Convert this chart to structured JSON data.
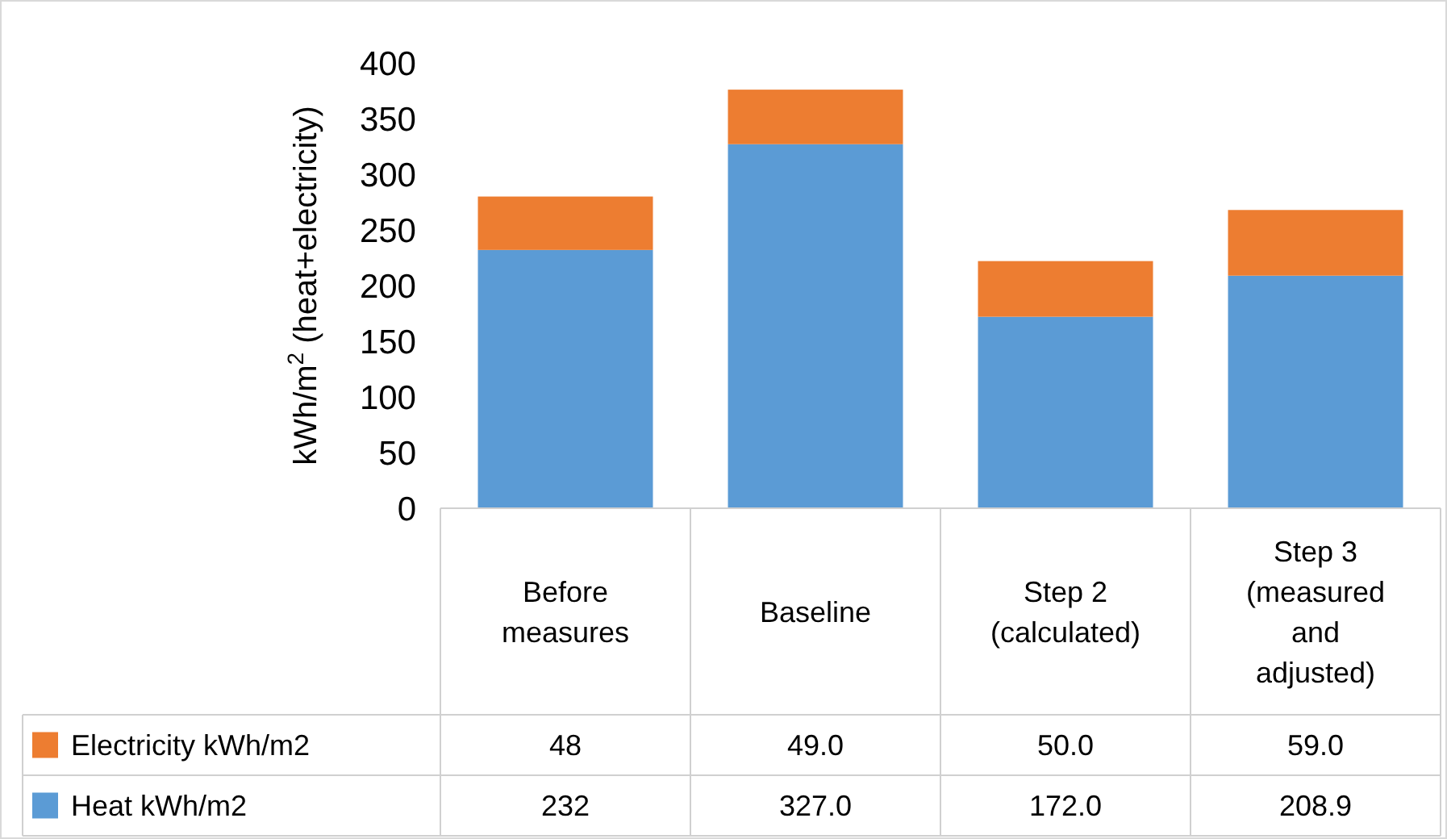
{
  "chart_data": {
    "type": "bar",
    "stacked": true,
    "ylabel": "kWh/m$^{2}$ (heat+electricity)",
    "categories": [
      "Before measures",
      "Baseline",
      "Step 2 (calculated)",
      "Step 3 (measured and adjusted)"
    ],
    "series": [
      {
        "name": "Heat kWh/m2",
        "color": "#5b9bd5",
        "values": [
          232,
          327.0,
          172.0,
          208.9
        ],
        "value_labels": [
          "232",
          "327.0",
          "172.0",
          "208.9"
        ]
      },
      {
        "name": "Electricity kWh/m2",
        "color": "#ed7d31",
        "values": [
          48,
          49.0,
          50.0,
          59.0
        ],
        "value_labels": [
          "48",
          "49.0",
          "50.0",
          "59.0"
        ]
      }
    ],
    "ylim": [
      0,
      400
    ],
    "yticks": [
      0,
      50,
      100,
      150,
      200,
      250,
      300,
      350,
      400
    ],
    "grid": false,
    "legend": "bottom left"
  }
}
